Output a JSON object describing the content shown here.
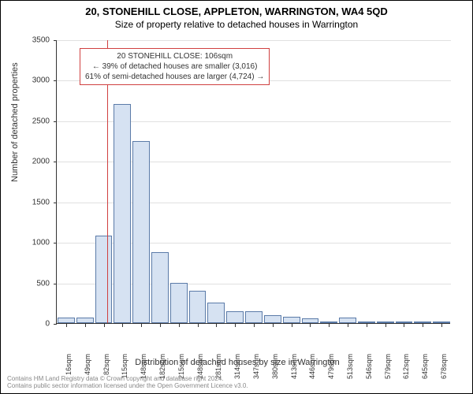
{
  "title": "20, STONEHILL CLOSE, APPLETON, WARRINGTON, WA4 5QD",
  "subtitle": "Size of property relative to detached houses in Warrington",
  "chart": {
    "type": "histogram",
    "ylabel": "Number of detached properties",
    "xlabel": "Distribution of detached houses by size in Warrington",
    "ylim": [
      0,
      3500
    ],
    "ytick_step": 500,
    "yticks": [
      0,
      500,
      1000,
      1500,
      2000,
      2500,
      3000,
      3500
    ],
    "xticks": [
      "16sqm",
      "49sqm",
      "82sqm",
      "115sqm",
      "148sqm",
      "182sqm",
      "215sqm",
      "248sqm",
      "281sqm",
      "314sqm",
      "347sqm",
      "380sqm",
      "413sqm",
      "446sqm",
      "479sqm",
      "513sqm",
      "546sqm",
      "579sqm",
      "612sqm",
      "645sqm",
      "678sqm"
    ],
    "bar_fill": "#d6e2f2",
    "bar_stroke": "#5b7ba8",
    "background_color": "#ffffff",
    "grid_color": "#e0e0e0",
    "marker_color": "#d04040",
    "marker_x_index": 2.7,
    "bars": [
      {
        "x": 0,
        "value": 70
      },
      {
        "x": 1,
        "value": 70
      },
      {
        "x": 2,
        "value": 1080
      },
      {
        "x": 3,
        "value": 2700
      },
      {
        "x": 4,
        "value": 2250
      },
      {
        "x": 5,
        "value": 880
      },
      {
        "x": 6,
        "value": 500
      },
      {
        "x": 7,
        "value": 400
      },
      {
        "x": 8,
        "value": 250
      },
      {
        "x": 9,
        "value": 150
      },
      {
        "x": 10,
        "value": 150
      },
      {
        "x": 11,
        "value": 100
      },
      {
        "x": 12,
        "value": 80
      },
      {
        "x": 13,
        "value": 60
      },
      {
        "x": 14,
        "value": 20
      },
      {
        "x": 15,
        "value": 70
      },
      {
        "x": 16,
        "value": 10
      },
      {
        "x": 17,
        "value": 5
      },
      {
        "x": 18,
        "value": 5
      },
      {
        "x": 19,
        "value": 5
      },
      {
        "x": 20,
        "value": 5
      }
    ]
  },
  "annotation": {
    "line1": "20 STONEHILL CLOSE: 106sqm",
    "line2": "← 39% of detached houses are smaller (3,016)",
    "line3": "61% of semi-detached houses are larger (4,724) →",
    "border_color": "#d04040"
  },
  "attribution": {
    "line1": "Contains HM Land Registry data © Crown copyright and database right 2024.",
    "line2": "Contains public sector information licensed under the Open Government Licence v3.0."
  }
}
